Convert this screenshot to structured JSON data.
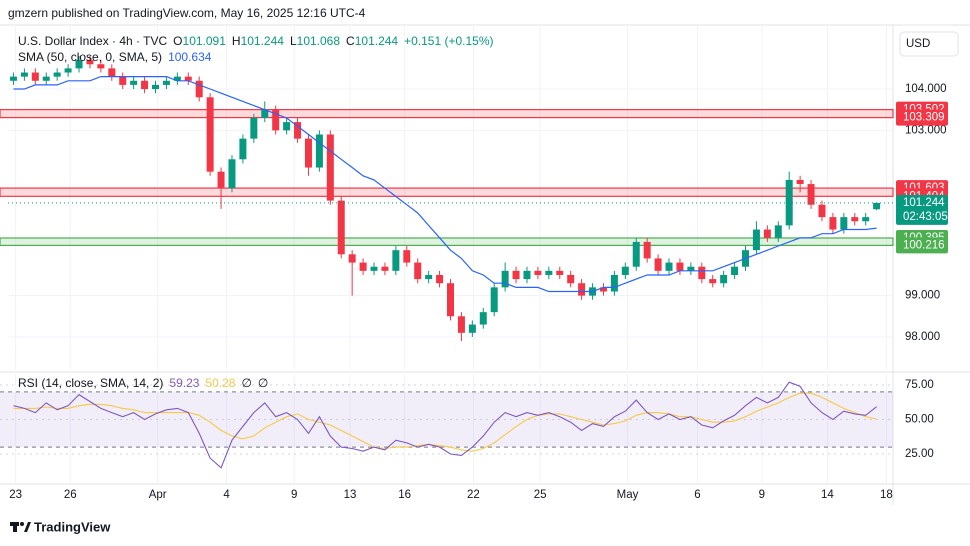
{
  "header": {
    "publisher": "gmzern published on TradingView.com, May 16, 2025 12:16 UTC-4"
  },
  "footer": {
    "brand": "TradingView"
  },
  "chart_data": {
    "type": "candlestick",
    "symbol": "U.S. Dollar Index · 4h · TVC",
    "ohlc_prefixes": [
      "O",
      "H",
      "L",
      "C"
    ],
    "change": "+0.151 (+0.15%)",
    "currency": "USD",
    "countdown": "02:43:05",
    "up_color": "#089981",
    "down_color": "#f23645",
    "open": [
      104.2,
      104.3,
      104.4,
      104.2,
      104.3,
      104.4,
      104.5,
      104.7,
      104.6,
      104.5,
      104.3,
      104.1,
      104.2,
      104.0,
      104.1,
      104.2,
      104.3,
      104.2,
      103.8,
      102.0,
      101.6,
      102.3,
      102.8,
      103.3,
      103.5,
      103.0,
      103.2,
      102.8,
      102.1,
      102.9,
      101.3,
      100.0,
      99.8,
      99.6,
      99.7,
      99.6,
      100.1,
      99.8,
      99.4,
      99.5,
      99.3,
      98.5,
      98.1,
      98.3,
      98.6,
      99.2,
      99.6,
      99.4,
      99.6,
      99.5,
      99.6,
      99.5,
      99.3,
      99.0,
      99.2,
      99.1,
      99.5,
      99.7,
      100.3,
      99.9,
      99.6,
      99.8,
      99.6,
      99.7,
      99.4,
      99.3,
      99.5,
      99.7,
      100.1,
      100.6,
      100.4,
      100.7,
      101.8,
      101.7,
      101.2,
      100.9,
      100.6,
      100.9,
      100.8,
      101.091
    ],
    "high": [
      104.4,
      104.5,
      104.5,
      104.4,
      104.5,
      104.6,
      104.8,
      104.8,
      104.7,
      104.6,
      104.4,
      104.3,
      104.3,
      104.2,
      104.3,
      104.4,
      104.4,
      104.3,
      103.9,
      102.1,
      102.4,
      102.9,
      103.4,
      103.7,
      103.6,
      103.3,
      103.3,
      102.9,
      103.0,
      103.0,
      101.4,
      100.1,
      99.9,
      99.8,
      99.8,
      100.2,
      100.2,
      99.9,
      99.6,
      99.6,
      99.4,
      98.6,
      98.4,
      98.7,
      99.3,
      99.8,
      99.7,
      99.7,
      99.7,
      99.7,
      99.7,
      99.6,
      99.4,
      99.3,
      99.3,
      99.6,
      99.8,
      100.4,
      100.4,
      100.0,
      99.9,
      99.9,
      99.8,
      99.8,
      99.5,
      99.6,
      99.8,
      100.2,
      100.8,
      100.7,
      100.8,
      102.0,
      101.9,
      101.8,
      101.3,
      101.0,
      101.0,
      101.0,
      101.0,
      101.244
    ],
    "low": [
      104.1,
      104.2,
      104.1,
      104.1,
      104.2,
      104.3,
      104.4,
      104.5,
      104.4,
      104.2,
      104.0,
      104.0,
      103.9,
      103.9,
      104.0,
      104.1,
      104.1,
      103.7,
      101.9,
      101.1,
      101.5,
      102.2,
      102.7,
      103.2,
      102.9,
      102.9,
      102.7,
      101.9,
      102.0,
      101.2,
      99.9,
      99.0,
      99.5,
      99.5,
      99.5,
      99.5,
      99.7,
      99.3,
      99.3,
      99.2,
      98.4,
      97.9,
      98.0,
      98.2,
      98.5,
      99.1,
      99.3,
      99.3,
      99.4,
      99.4,
      99.4,
      99.2,
      98.9,
      98.9,
      99.0,
      99.0,
      99.4,
      99.6,
      99.8,
      99.5,
      99.5,
      99.5,
      99.5,
      99.3,
      99.2,
      99.2,
      99.4,
      99.6,
      100.0,
      100.3,
      100.3,
      100.6,
      101.5,
      101.1,
      100.8,
      100.5,
      100.5,
      100.7,
      100.7,
      101.068
    ],
    "close": [
      104.3,
      104.4,
      104.2,
      104.3,
      104.4,
      104.5,
      104.7,
      104.6,
      104.5,
      104.3,
      104.1,
      104.2,
      104.0,
      104.1,
      104.2,
      104.3,
      104.2,
      103.8,
      102.0,
      101.6,
      102.3,
      102.8,
      103.3,
      103.5,
      103.0,
      103.2,
      102.8,
      102.1,
      102.9,
      101.3,
      100.0,
      99.8,
      99.6,
      99.7,
      99.6,
      100.1,
      99.8,
      99.4,
      99.5,
      99.3,
      98.5,
      98.1,
      98.3,
      98.6,
      99.2,
      99.6,
      99.4,
      99.6,
      99.5,
      99.6,
      99.5,
      99.3,
      99.0,
      99.2,
      99.1,
      99.5,
      99.7,
      100.3,
      99.9,
      99.6,
      99.8,
      99.6,
      99.7,
      99.4,
      99.3,
      99.5,
      99.7,
      100.1,
      100.6,
      100.4,
      100.7,
      101.8,
      101.7,
      101.2,
      100.9,
      100.6,
      100.9,
      100.8,
      100.9,
      101.244
    ],
    "xlim": [
      -0.5,
      80.5
    ],
    "xticks": [
      {
        "value": 0.2,
        "label": "23"
      },
      {
        "value": 5.2,
        "label": "26"
      },
      {
        "value": 13.2,
        "label": "Apr"
      },
      {
        "value": 19.5,
        "label": "4"
      },
      {
        "value": 25.7,
        "label": "9"
      },
      {
        "value": 30.8,
        "label": "13"
      },
      {
        "value": 35.8,
        "label": "16"
      },
      {
        "value": 42.1,
        "label": "22"
      },
      {
        "value": 48.2,
        "label": "25"
      },
      {
        "value": 56.2,
        "label": "May"
      },
      {
        "value": 62.6,
        "label": "6"
      },
      {
        "value": 68.5,
        "label": "9"
      },
      {
        "value": 74.5,
        "label": "14"
      },
      {
        "value": 79.9,
        "label": "18"
      }
    ],
    "ylim": [
      97.2,
      105.55
    ],
    "yticks": [
      {
        "value": 104,
        "label": "104.000"
      },
      {
        "value": 103,
        "label": "103.000"
      },
      {
        "value": 99,
        "label": "99.000"
      },
      {
        "value": 98,
        "label": "98.000"
      }
    ],
    "grid": true,
    "zones": [
      {
        "low": 103.309,
        "high": 103.502,
        "color": "#f23645"
      },
      {
        "low": 101.404,
        "high": 101.603,
        "color": "#f23645"
      },
      {
        "low": 100.216,
        "high": 100.395,
        "color": "#4caf50"
      }
    ],
    "sma": {
      "name": "SMA (50, close, 0, SMA, 5)",
      "color": "#2962ff",
      "values": [
        104.0,
        104.0,
        104.1,
        104.1,
        104.1,
        104.2,
        104.2,
        104.2,
        104.3,
        104.3,
        104.3,
        104.3,
        104.3,
        104.3,
        104.3,
        104.2,
        104.2,
        104.1,
        104.0,
        103.9,
        103.8,
        103.7,
        103.6,
        103.5,
        103.4,
        103.3,
        103.1,
        102.9,
        102.7,
        102.5,
        102.3,
        102.1,
        101.9,
        101.8,
        101.6,
        101.4,
        101.2,
        101.0,
        100.7,
        100.4,
        100.1,
        99.9,
        99.6,
        99.5,
        99.3,
        99.3,
        99.2,
        99.2,
        99.2,
        99.1,
        99.1,
        99.1,
        99.1,
        99.1,
        99.2,
        99.2,
        99.3,
        99.4,
        99.5,
        99.5,
        99.5,
        99.6,
        99.6,
        99.6,
        99.6,
        99.7,
        99.8,
        99.9,
        100.0,
        100.1,
        100.2,
        100.3,
        100.4,
        100.4,
        100.5,
        100.5,
        100.6,
        100.6,
        100.6,
        100.634
      ]
    },
    "rsi": {
      "name": "RSI (14, close, SMA, 14, 2)",
      "extra_labels": [
        "∅",
        "∅"
      ],
      "ylim": [
        4,
        82.2
      ],
      "yticks": [
        {
          "value": 75,
          "label": "75.00"
        },
        {
          "value": 50,
          "label": "50.00"
        },
        {
          "value": 25,
          "label": "25.00"
        }
      ],
      "bands": [
        30,
        70
      ],
      "band_color": "#7e57c2",
      "series": [
        {
          "color": "#7e57c2",
          "values": [
            60,
            58,
            55,
            62,
            57,
            60,
            68,
            63,
            58,
            55,
            52,
            55,
            50,
            54,
            57,
            58,
            55,
            40,
            22,
            15,
            35,
            45,
            55,
            62,
            52,
            55,
            50,
            40,
            52,
            38,
            30,
            29,
            27,
            30,
            28,
            35,
            33,
            30,
            32,
            30,
            25,
            24,
            30,
            38,
            48,
            55,
            52,
            55,
            53,
            55,
            52,
            48,
            42,
            47,
            45,
            52,
            56,
            64,
            55,
            50,
            54,
            50,
            52,
            46,
            44,
            49,
            53,
            60,
            66,
            62,
            66,
            77,
            74,
            62,
            55,
            50,
            56,
            54,
            53,
            59.23
          ]
        },
        {
          "color": "#f7c948",
          "values": [
            58,
            58,
            58,
            59,
            58,
            58,
            60,
            61,
            61,
            60,
            58,
            57,
            55,
            55,
            55,
            55,
            55,
            53,
            48,
            42,
            38,
            36,
            38,
            44,
            48,
            52,
            54,
            50,
            48,
            46,
            42,
            38,
            34,
            30,
            29,
            30,
            30,
            31,
            32,
            31,
            30,
            28,
            27,
            29,
            33,
            39,
            45,
            50,
            53,
            54,
            54,
            52,
            50,
            48,
            46,
            47,
            49,
            53,
            55,
            55,
            54,
            52,
            52,
            50,
            48,
            48,
            49,
            52,
            56,
            59,
            62,
            66,
            69,
            69,
            66,
            62,
            58,
            55,
            52,
            50.28
          ]
        }
      ]
    }
  }
}
